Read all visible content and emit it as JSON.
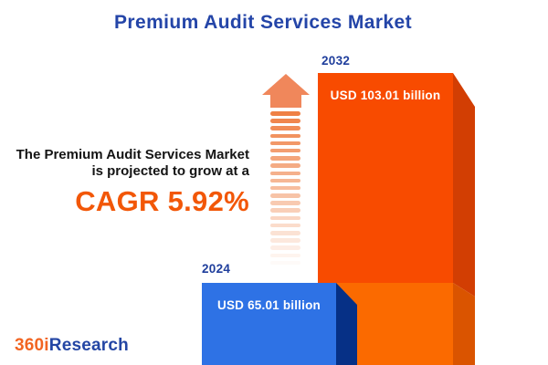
{
  "title": "Premium Audit Services Market",
  "headline": {
    "line1": "The Premium Audit Services Market",
    "line2": "is projected to grow at a",
    "cagr": "CAGR 5.92%"
  },
  "bars": {
    "b2032": {
      "year": "2032",
      "value_label": "USD 103.01 billion"
    },
    "b2024": {
      "year": "2024",
      "value_label": "USD 65.01 billion"
    }
  },
  "logo": {
    "part1": "360i",
    "part2": "Research"
  },
  "colors": {
    "title_blue": "#2445A8",
    "year_label_blue": "#1F3E9C",
    "headline_text": "#141414",
    "cagr_orange": "#F25708",
    "bar2032_front_top": "#F84B00",
    "bar2032_front_bottom": "#FB6A00",
    "bar2032_side_top": "#D23E03",
    "bar2032_side_bottom": "#DA5400",
    "bar2024_front": "#2E72E5",
    "bar2024_side": "#063086",
    "arrow_head": "#F0875B",
    "arrow_stripe": "#EF8045",
    "value_label_white": "#FFFFFF",
    "logo_orange": "#F26522",
    "logo_blue": "#2446A4"
  },
  "arrow": {
    "stripe_count": 21
  },
  "chart_data": {
    "type": "bar",
    "title": "Premium Audit Services Market",
    "categories": [
      "2024",
      "2032"
    ],
    "values": [
      65.01,
      103.01
    ],
    "unit": "USD billion",
    "value_labels": [
      "USD 65.01 billion",
      "USD 103.01 billion"
    ],
    "cagr_percent": 5.92,
    "annotation": "The Premium Audit Services Market is projected to grow at a CAGR 5.92%",
    "orientation": "vertical",
    "legend": "none",
    "gridlines": false,
    "axis_labels": "none",
    "series_colors": [
      "#2E72E5",
      "#F84B00"
    ]
  }
}
